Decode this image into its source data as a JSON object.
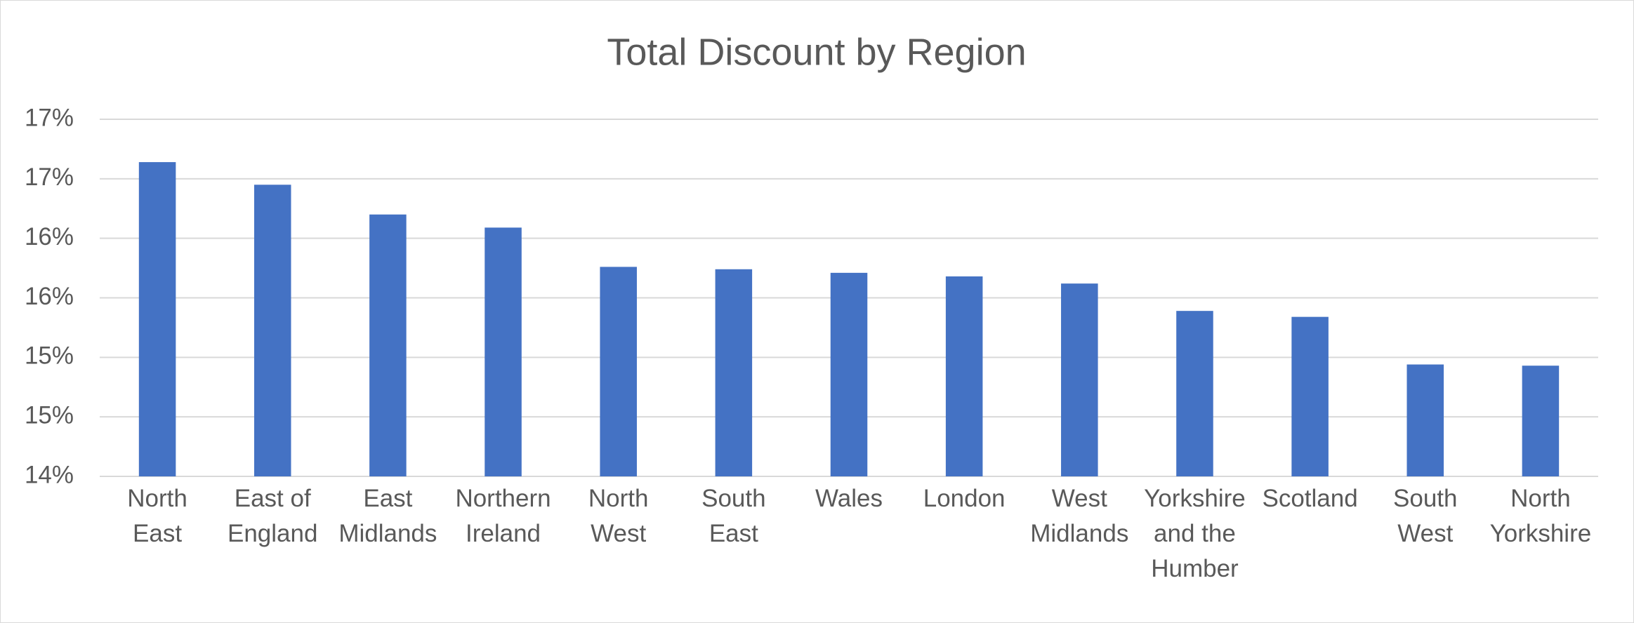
{
  "chart_data": {
    "type": "bar",
    "title": "Total Discount by Region",
    "categories": [
      "North East",
      "East of England",
      "East Midlands",
      "Northern Ireland",
      "North West",
      "South East",
      "Wales",
      "London",
      "West Midlands",
      "Yorkshire and the Humber",
      "Scotland",
      "South West",
      "North Yorkshire"
    ],
    "values": [
      16.64,
      16.45,
      16.2,
      16.09,
      15.76,
      15.74,
      15.71,
      15.68,
      15.62,
      15.39,
      15.34,
      14.94,
      14.93
    ],
    "color": "#4472c4",
    "ylim": [
      14,
      17
    ],
    "yticks": [
      {
        "value": 14,
        "label": "14%"
      },
      {
        "value": 14.5,
        "label": "15%"
      },
      {
        "value": 15,
        "label": "15%"
      },
      {
        "value": 15.5,
        "label": "16%"
      },
      {
        "value": 16,
        "label": "16%"
      },
      {
        "value": 16.5,
        "label": "17%"
      },
      {
        "value": 17,
        "label": "17%"
      }
    ],
    "grid": true
  }
}
